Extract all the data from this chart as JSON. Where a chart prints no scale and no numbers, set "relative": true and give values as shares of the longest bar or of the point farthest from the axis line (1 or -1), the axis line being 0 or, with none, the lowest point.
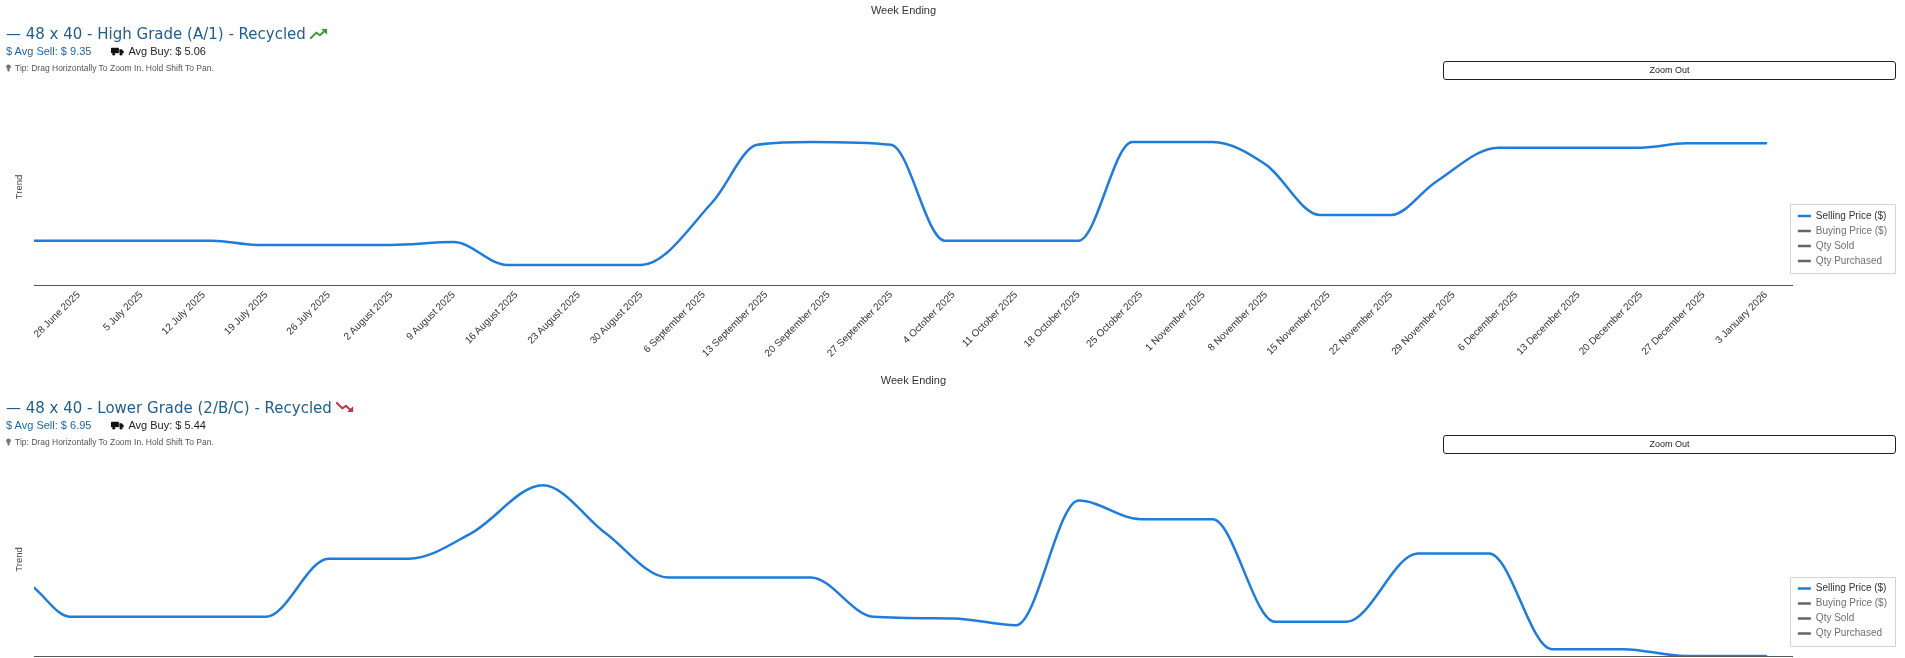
{
  "chart_data": [
    {
      "type": "other",
      "xlabel": "Week Ending"
    },
    {
      "type": "line",
      "title": "— 48 x 40 - High Grade (A/1) - Recycled",
      "subtitle": "$ Avg Sell: $ 9.35",
      "annotations": [
        "Avg Buy: $ 5.06",
        "Tip: Drag Horizontally To Zoom In. Hold Shift To Pan.",
        "Zoom Out"
      ],
      "xlabel": "Week Ending",
      "ylabel": "Trend",
      "relative": true,
      "x": [
        "2025-06-23",
        "2025-07-13",
        "2025-07-18",
        "2025-08-02",
        "2025-08-09",
        "2025-08-15",
        "2025-08-30",
        "2025-09-07",
        "2025-09-12",
        "2025-09-18",
        "2025-09-27",
        "2025-10-03",
        "2025-10-18",
        "2025-10-24",
        "2025-11-02",
        "2025-11-08",
        "2025-11-14",
        "2025-11-22",
        "2025-11-27",
        "2025-12-04",
        "2025-12-20",
        "2025-12-25",
        "2026-01-03"
      ],
      "xlim": [
        "2025-06-23",
        "2026-01-06"
      ],
      "xticks": [
        {
          "value": "2025-06-28",
          "label": "28 June 2025"
        },
        {
          "value": "2025-07-05",
          "label": "5 July 2025"
        },
        {
          "value": "2025-07-12",
          "label": "12 July 2025"
        },
        {
          "value": "2025-07-19",
          "label": "19 July 2025"
        },
        {
          "value": "2025-07-26",
          "label": "26 July 2025"
        },
        {
          "value": "2025-08-02",
          "label": "2 August 2025"
        },
        {
          "value": "2025-08-09",
          "label": "9 August 2025"
        },
        {
          "value": "2025-08-16",
          "label": "16 August 2025"
        },
        {
          "value": "2025-08-23",
          "label": "23 August 2025"
        },
        {
          "value": "2025-08-30",
          "label": "30 August 2025"
        },
        {
          "value": "2025-09-06",
          "label": "6 September 2025"
        },
        {
          "value": "2025-09-13",
          "label": "13 September 2025"
        },
        {
          "value": "2025-09-20",
          "label": "20 September 2025"
        },
        {
          "value": "2025-09-27",
          "label": "27 September 2025"
        },
        {
          "value": "2025-10-04",
          "label": "4 October 2025"
        },
        {
          "value": "2025-10-11",
          "label": "11 October 2025"
        },
        {
          "value": "2025-10-18",
          "label": "18 October 2025"
        },
        {
          "value": "2025-10-25",
          "label": "25 October 2025"
        },
        {
          "value": "2025-11-01",
          "label": "1 November 2025"
        },
        {
          "value": "2025-11-08",
          "label": "8 November 2025"
        },
        {
          "value": "2025-11-15",
          "label": "15 November 2025"
        },
        {
          "value": "2025-11-22",
          "label": "22 November 2025"
        },
        {
          "value": "2025-11-29",
          "label": "29 November 2025"
        },
        {
          "value": "2025-12-06",
          "label": "6 December 2025"
        },
        {
          "value": "2025-12-13",
          "label": "13 December 2025"
        },
        {
          "value": "2025-12-20",
          "label": "20 December 2025"
        },
        {
          "value": "2025-12-27",
          "label": "27 December 2025"
        },
        {
          "value": "2026-01-03",
          "label": "3 January 2026"
        }
      ],
      "tick_labels": "x",
      "series": [
        {
          "name": "Selling Price ($)",
          "color": "#1e7ddc",
          "values": [
            0.31,
            0.31,
            0.28,
            0.28,
            0.3,
            0.14,
            0.14,
            0.58,
            0.98,
            1.0,
            0.98,
            0.31,
            0.31,
            1.0,
            1.0,
            0.84,
            0.49,
            0.49,
            0.72,
            0.96,
            0.96,
            0.99,
            0.99
          ]
        },
        {
          "name": "Buying Price ($)",
          "color": "#666666",
          "values": [
            null,
            null,
            null,
            null,
            null,
            null,
            null,
            null,
            null,
            null,
            null,
            null,
            null,
            null,
            null,
            null,
            null,
            null,
            null,
            null,
            null,
            null,
            null
          ]
        },
        {
          "name": "Qty Sold",
          "color": "#666666",
          "values": [
            null,
            null,
            null,
            null,
            null,
            null,
            null,
            null,
            null,
            null,
            null,
            null,
            null,
            null,
            null,
            null,
            null,
            null,
            null,
            null,
            null,
            null,
            null
          ]
        },
        {
          "name": "Qty Purchased",
          "color": "#666666",
          "values": [
            null,
            null,
            null,
            null,
            null,
            null,
            null,
            null,
            null,
            null,
            null,
            null,
            null,
            null,
            null,
            null,
            null,
            null,
            null,
            null,
            null,
            null,
            null
          ]
        }
      ],
      "legend": "right"
    },
    {
      "type": "line",
      "title": "— 48 x 40 - Lower Grade (2/B/C) - Recycled",
      "subtitle": "$ Avg Sell: $ 6.95",
      "annotations": [
        "Avg Buy: $ 5.44",
        "Tip: Drag Horizontally To Zoom In. Hold Shift To Pan.",
        "Zoom Out"
      ],
      "ylabel": "Trend",
      "relative": true,
      "x": [
        "2025-06-23",
        "2025-06-27",
        "2025-07-19",
        "2025-07-26",
        "2025-08-04",
        "2025-08-11",
        "2025-08-19",
        "2025-08-26",
        "2025-09-02",
        "2025-09-18",
        "2025-09-25",
        "2025-10-04",
        "2025-10-11",
        "2025-10-18",
        "2025-10-25",
        "2025-11-02",
        "2025-11-09",
        "2025-11-17",
        "2025-11-25",
        "2025-12-03",
        "2025-12-10",
        "2025-12-18",
        "2025-12-25",
        "2026-01-03"
      ],
      "xlim": [
        "2025-06-23",
        "2026-01-06"
      ],
      "tick_labels": false,
      "series": [
        {
          "name": "Selling Price ($)",
          "color": "#1e7ddc",
          "values": [
            0.4,
            0.23,
            0.23,
            0.57,
            0.57,
            0.72,
            1.0,
            0.72,
            0.46,
            0.46,
            0.23,
            0.22,
            0.18,
            0.91,
            0.8,
            0.8,
            0.2,
            0.2,
            0.6,
            0.6,
            0.04,
            0.04,
            0,
            0
          ]
        },
        {
          "name": "Buying Price ($)",
          "color": "#666666",
          "values": [
            null,
            null,
            null,
            null,
            null,
            null,
            null,
            null,
            null,
            null,
            null,
            null,
            null,
            null,
            null,
            null,
            null,
            null,
            null,
            null,
            null,
            null,
            null,
            null
          ]
        },
        {
          "name": "Qty Sold",
          "color": "#666666",
          "values": [
            null,
            null,
            null,
            null,
            null,
            null,
            null,
            null,
            null,
            null,
            null,
            null,
            null,
            null,
            null,
            null,
            null,
            null,
            null,
            null,
            null,
            null,
            null,
            null
          ]
        },
        {
          "name": "Qty Purchased",
          "color": "#666666",
          "values": [
            null,
            null,
            null,
            null,
            null,
            null,
            null,
            null,
            null,
            null,
            null,
            null,
            null,
            null,
            null,
            null,
            null,
            null,
            null,
            null,
            null,
            null,
            null,
            null
          ]
        }
      ],
      "legend": "right"
    }
  ]
}
